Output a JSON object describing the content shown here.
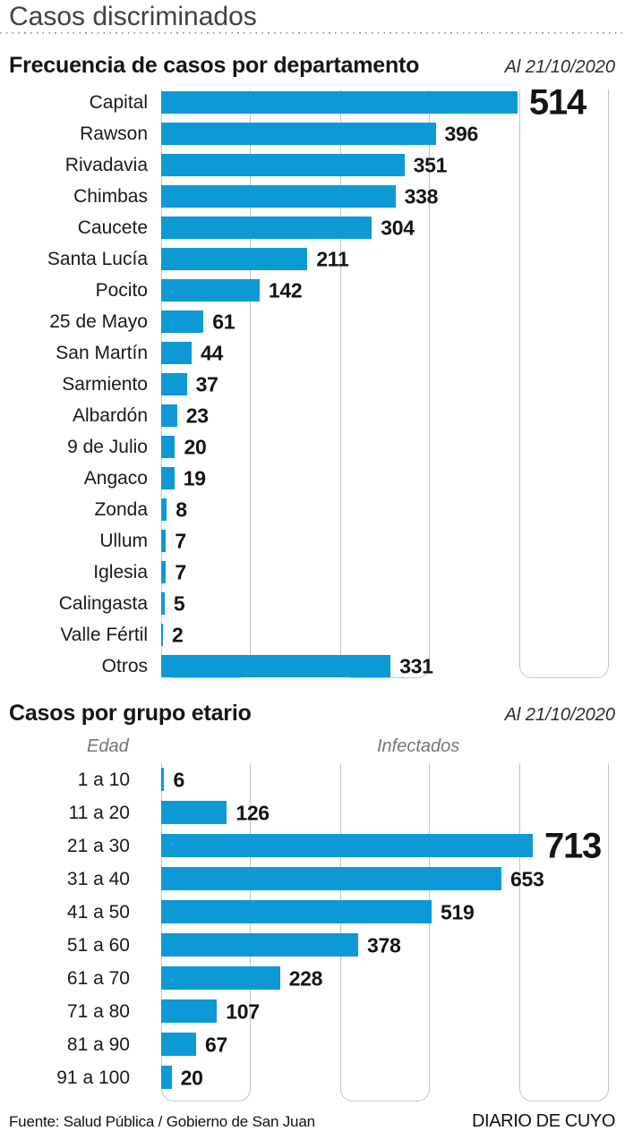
{
  "page": {
    "title": "Casos discriminados",
    "source": "Fuente: Salud Pública / Gobierno de San Juan",
    "brand": "DIARIO DE CUYO"
  },
  "colors": {
    "bar": "#0d99d6",
    "grid": "#c5c5c5",
    "title_gray": "#414141",
    "italic_gray": "#767676",
    "text": "#1a1a1a"
  },
  "chart_data": [
    {
      "type": "bar",
      "orientation": "horizontal",
      "title": "Frecuencia de casos por departamento",
      "date_note": "Al 21/10/2020",
      "categories": [
        "Capital",
        "Rawson",
        "Rivadavia",
        "Chimbas",
        "Caucete",
        "Santa Lucía",
        "Pocito",
        "25 de Mayo",
        "San Martín",
        "Sarmiento",
        "Albardón",
        "9 de Julio",
        "Angaco",
        "Zonda",
        "Ullum",
        "Iglesia",
        "Calingasta",
        "Valle Fértil",
        "Otros"
      ],
      "values": [
        514,
        396,
        351,
        338,
        304,
        211,
        142,
        61,
        44,
        37,
        23,
        20,
        19,
        8,
        7,
        7,
        5,
        2,
        331
      ],
      "emphasized_value": 514,
      "xlim": [
        0,
        670
      ],
      "grid": "three rounded vertical columns, no tick labels",
      "legend": "none"
    },
    {
      "type": "bar",
      "orientation": "horizontal",
      "title": "Casos por grupo etario",
      "date_note": "Al 21/10/2020",
      "col_headers": {
        "left": "Edad",
        "right": "Infectados"
      },
      "categories": [
        "1 a 10",
        "11 a 20",
        "21 a 30",
        "31 a 40",
        "41 a 50",
        "51 a 60",
        "61 a 70",
        "71 a 80",
        "81 a 90",
        "91 a 100"
      ],
      "values": [
        6,
        126,
        713,
        653,
        519,
        378,
        228,
        107,
        67,
        20
      ],
      "emphasized_value": 713,
      "xlim": [
        0,
        890
      ],
      "grid": "three rounded vertical columns, no tick labels",
      "legend": "none"
    }
  ]
}
